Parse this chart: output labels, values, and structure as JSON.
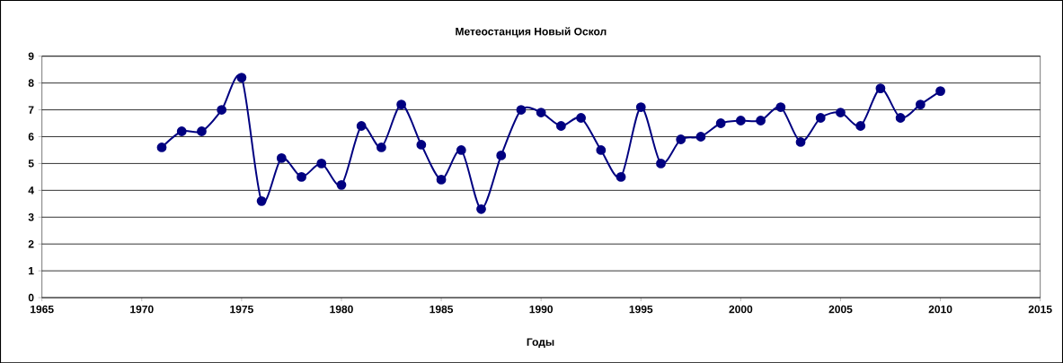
{
  "chart_data": {
    "type": "line",
    "title": "Метеостанция Новый Оскол",
    "xlabel": "Годы",
    "x": [
      1971,
      1972,
      1973,
      1974,
      1975,
      1976,
      1977,
      1978,
      1979,
      1980,
      1981,
      1982,
      1983,
      1984,
      1985,
      1986,
      1987,
      1988,
      1989,
      1990,
      1991,
      1992,
      1993,
      1994,
      1995,
      1996,
      1997,
      1998,
      1999,
      2000,
      2001,
      2002,
      2003,
      2004,
      2005,
      2006,
      2007,
      2008,
      2009,
      2010
    ],
    "series": [
      {
        "color": "#000080",
        "values": [
          5.6,
          6.2,
          6.2,
          7.0,
          8.2,
          3.6,
          5.2,
          4.5,
          5.0,
          4.2,
          6.4,
          5.6,
          7.2,
          5.7,
          4.4,
          5.5,
          3.3,
          5.3,
          7.0,
          6.9,
          6.4,
          6.7,
          5.5,
          4.5,
          7.1,
          5.0,
          5.9,
          6.0,
          6.5,
          6.6,
          6.6,
          7.1,
          5.8,
          6.7,
          6.9,
          6.4,
          7.8,
          6.7,
          7.2,
          7.7
        ]
      }
    ],
    "xlim": [
      1965,
      2015
    ],
    "xticks": [
      1965,
      1970,
      1975,
      1980,
      1985,
      1990,
      1995,
      2000,
      2005,
      2010,
      2015
    ],
    "ylim": [
      0,
      9
    ],
    "yticks": [
      0,
      1,
      2,
      3,
      4,
      5,
      6,
      7,
      8,
      9
    ],
    "grid": "y",
    "marker": "circle",
    "line_style": "solid"
  }
}
